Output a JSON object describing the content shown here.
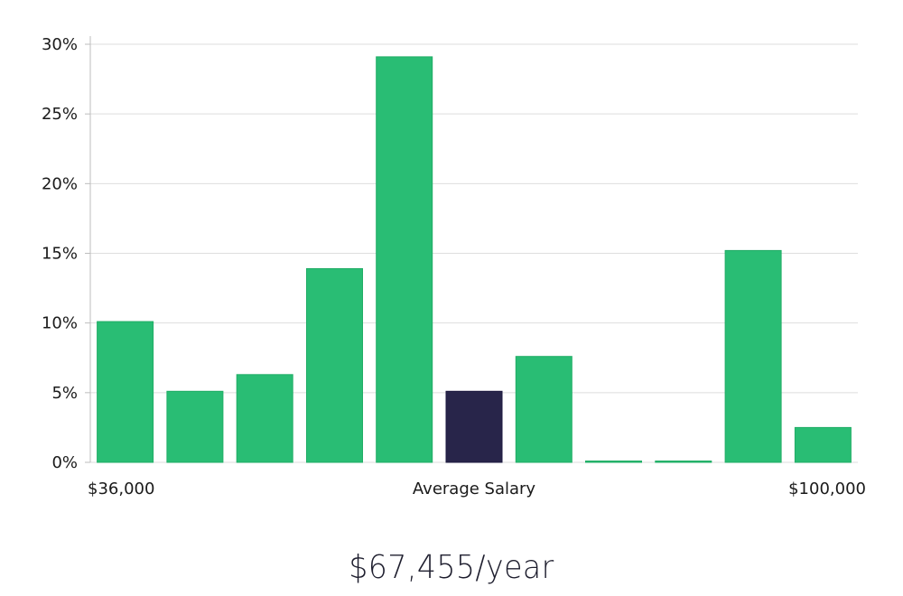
{
  "colors": {
    "bar": "#29bd74",
    "bar_stroke": "#21ad66",
    "highlight": "#28254a",
    "grid": "#dedede",
    "axis": "#bdbdbd"
  },
  "chart_data": {
    "type": "bar",
    "categories": [
      "1",
      "2",
      "3",
      "4",
      "5",
      "6",
      "7",
      "8",
      "9",
      "10",
      "11"
    ],
    "values": [
      10.1,
      5.1,
      6.3,
      13.9,
      29.1,
      5.1,
      7.6,
      0.1,
      0.1,
      15.2,
      2.5
    ],
    "highlight_index": 5,
    "ylim": [
      0,
      30
    ],
    "yticks": [
      "0%",
      "5%",
      "10%",
      "15%",
      "20%",
      "25%",
      "30%"
    ],
    "grid": true,
    "x_labels": {
      "left": "$36,000",
      "center": "Average Salary",
      "right": "$100,000"
    }
  },
  "summary": {
    "salary": "$67,455/year"
  }
}
